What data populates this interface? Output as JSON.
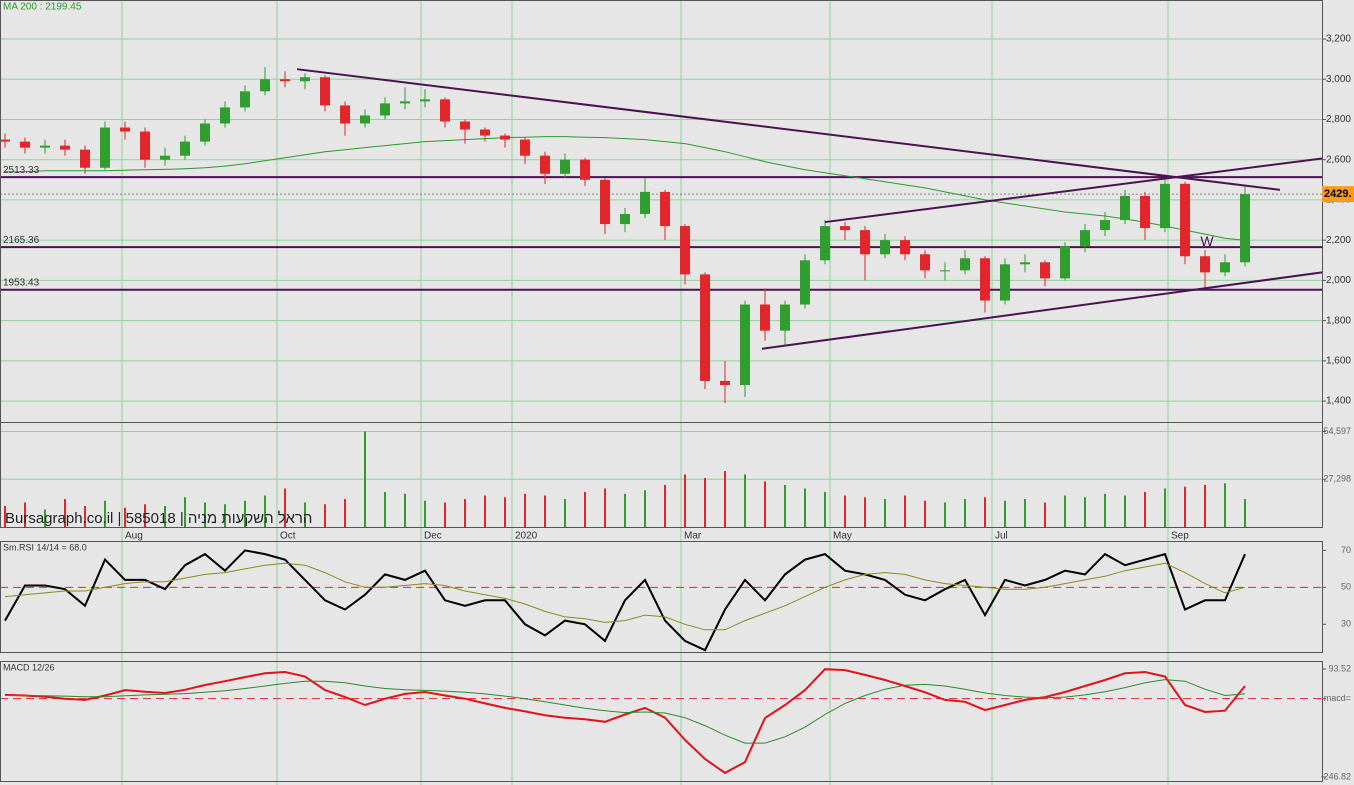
{
  "chart_data": [
    {
      "type": "candlestick",
      "ma_label": "MA 200 : 2199.45",
      "watermark": "Bursagraph.co.il | 585018 | הראל השקעות מניה",
      "open": [
        2700,
        2690,
        2660,
        2670,
        2650,
        2560,
        2760,
        2740,
        2600,
        2620,
        2690,
        2780,
        2860,
        2940,
        3000,
        2990,
        3010,
        2870,
        2780,
        2820,
        2880,
        2890,
        2900,
        2790,
        2750,
        2720,
        2700,
        2620,
        2530,
        2600,
        2500,
        2280,
        2330,
        2440,
        2270,
        2030,
        1500,
        1480,
        1880,
        1750,
        1880,
        2100,
        2270,
        2250,
        2130,
        2200,
        2130,
        2050,
        2050,
        2110,
        1900,
        2080,
        2090,
        2010,
        2170,
        2250,
        2300,
        2420,
        2260,
        2480,
        2120,
        2040,
        2090
      ],
      "high": [
        2730,
        2710,
        2700,
        2700,
        2670,
        2790,
        2790,
        2760,
        2660,
        2720,
        2800,
        2890,
        2970,
        3060,
        3040,
        3030,
        3020,
        2890,
        2850,
        2910,
        2960,
        2950,
        2910,
        2800,
        2760,
        2730,
        2710,
        2640,
        2630,
        2610,
        2510,
        2360,
        2510,
        2450,
        2280,
        2040,
        1600,
        1900,
        1960,
        1900,
        2130,
        2300,
        2290,
        2270,
        2230,
        2220,
        2150,
        2090,
        2150,
        2120,
        2110,
        2130,
        2100,
        2190,
        2280,
        2340,
        2450,
        2440,
        2510,
        2490,
        2150,
        2130,
        2470
      ],
      "low": [
        2660,
        2630,
        2630,
        2620,
        2530,
        2550,
        2700,
        2560,
        2570,
        2600,
        2670,
        2760,
        2840,
        2920,
        2960,
        2950,
        2840,
        2720,
        2760,
        2800,
        2850,
        2860,
        2760,
        2680,
        2690,
        2660,
        2580,
        2480,
        2510,
        2470,
        2230,
        2240,
        2310,
        2200,
        1980,
        1460,
        1390,
        1420,
        1700,
        1680,
        1860,
        2080,
        2200,
        2000,
        2110,
        2100,
        2010,
        2000,
        2030,
        1840,
        1880,
        2040,
        1970,
        2000,
        2140,
        2220,
        2280,
        2200,
        2240,
        2080,
        1960,
        2020,
        2070
      ],
      "close": [
        2690,
        2660,
        2670,
        2650,
        2560,
        2760,
        2740,
        2600,
        2620,
        2690,
        2780,
        2860,
        2940,
        3000,
        2990,
        3010,
        2870,
        2780,
        2820,
        2880,
        2890,
        2900,
        2790,
        2750,
        2720,
        2700,
        2620,
        2530,
        2600,
        2500,
        2280,
        2330,
        2440,
        2270,
        2030,
        1500,
        1480,
        1880,
        1750,
        1880,
        2100,
        2270,
        2250,
        2130,
        2200,
        2130,
        2050,
        2050,
        2110,
        1900,
        2080,
        2090,
        2010,
        2170,
        2250,
        2300,
        2420,
        2260,
        2480,
        2120,
        2040,
        2090,
        2429
      ],
      "up_color": "#2f9e2f",
      "down_color": "#e3262b",
      "ma": {
        "color": "#2c9a2c",
        "values": [
          2540,
          2540,
          2545,
          2545,
          2545,
          2545,
          2548,
          2550,
          2552,
          2555,
          2560,
          2568,
          2580,
          2595,
          2610,
          2625,
          2640,
          2650,
          2660,
          2670,
          2680,
          2690,
          2695,
          2700,
          2705,
          2710,
          2712,
          2715,
          2715,
          2712,
          2710,
          2705,
          2700,
          2690,
          2680,
          2660,
          2640,
          2615,
          2590,
          2570,
          2550,
          2535,
          2520,
          2505,
          2490,
          2475,
          2460,
          2440,
          2420,
          2400,
          2385,
          2370,
          2355,
          2340,
          2330,
          2320,
          2305,
          2290,
          2270,
          2250,
          2230,
          2210,
          2199.45
        ]
      },
      "levels": [
        2513.33,
        2165.36,
        1953.43
      ],
      "last_price": {
        "value": 2429,
        "label": "2429."
      },
      "trend_color": "#4a1250",
      "trend_lines": [
        [
          [
            14.6,
            3050
          ],
          [
            63.75,
            2450
          ]
        ],
        [
          [
            41,
            2290
          ],
          [
            65.85,
            2606
          ]
        ],
        [
          [
            37.85,
            1660
          ],
          [
            65.85,
            2040
          ]
        ]
      ],
      "annotations": [
        {
          "text": "W",
          "x": 60.1,
          "y": 2190
        }
      ],
      "xlim": [
        -0.25,
        65.85
      ],
      "xticks": [
        {
          "value": 5.85,
          "label": "Aug"
        },
        {
          "value": 13.6,
          "label": "Oct"
        },
        {
          "value": 20.8,
          "label": "Dec"
        },
        {
          "value": 25.35,
          "label": "2020"
        },
        {
          "value": 33.8,
          "label": "Mar"
        },
        {
          "value": 41.25,
          "label": "May"
        },
        {
          "value": 49.35,
          "label": "Jul"
        },
        {
          "value": 58.15,
          "label": "Sep"
        }
      ],
      "ylim": [
        1296,
        3394
      ],
      "yticks": [
        {
          "value": 1400,
          "label": "1,400"
        },
        {
          "value": 1600,
          "label": "1,600"
        },
        {
          "value": 1800,
          "label": "1,800"
        },
        {
          "value": 2000,
          "label": "2,000"
        },
        {
          "value": 2200,
          "label": "2,200"
        },
        {
          "value": 2400,
          "label": "2,400"
        },
        {
          "value": 2600,
          "label": "2,600"
        },
        {
          "value": 2800,
          "label": "2,800"
        },
        {
          "value": 3000,
          "label": "3,000"
        },
        {
          "value": 3200,
          "label": "3,200"
        }
      ],
      "grid": true,
      "grid_color": "#8fd49a"
    },
    {
      "type": "bar",
      "values": [
        12000,
        14000,
        10000,
        16000,
        12000,
        15000,
        11000,
        13000,
        12000,
        17000,
        14000,
        13000,
        15000,
        18000,
        22000,
        14000,
        13000,
        16000,
        54597,
        20000,
        19000,
        15000,
        14000,
        16000,
        18000,
        17000,
        19000,
        18000,
        16000,
        20000,
        22000,
        19000,
        21000,
        24000,
        30000,
        28000,
        32000,
        30000,
        26000,
        24000,
        22000,
        20000,
        18000,
        17000,
        16000,
        18000,
        15000,
        14000,
        16000,
        17000,
        15000,
        16000,
        14000,
        18000,
        17000,
        19000,
        18000,
        20000,
        22000,
        23000,
        24000,
        25000,
        16000
      ],
      "ylim": [
        0,
        60000
      ],
      "yticks": [
        {
          "value": 27298,
          "label": "27,298"
        },
        {
          "value": 54597,
          "label": "54,597"
        }
      ]
    },
    {
      "type": "line",
      "title": "Sm.RSI 14/14 = 68.0",
      "series": [
        {
          "color": "#000000",
          "values": [
            32,
            51,
            51,
            49,
            40,
            65,
            54,
            54,
            49,
            62,
            68,
            59,
            70,
            68,
            65,
            54,
            43,
            38,
            46,
            57,
            54,
            59,
            43,
            40,
            43,
            43,
            30,
            24,
            32,
            30,
            21,
            43,
            54,
            32,
            21,
            16,
            38,
            54,
            43,
            57,
            65,
            68,
            59,
            57,
            54,
            46,
            43,
            49,
            54,
            35,
            54,
            51,
            54,
            59,
            57,
            68,
            62,
            65,
            68,
            38,
            43,
            43,
            68
          ]
        },
        {
          "color": "#8a8a20",
          "values": [
            45,
            46,
            47,
            48,
            48,
            50,
            52,
            53,
            53,
            55,
            57,
            58,
            60,
            62,
            63,
            62,
            58,
            53,
            50,
            50,
            51,
            52,
            51,
            48,
            46,
            44,
            41,
            37,
            34,
            33,
            31,
            32,
            35,
            34,
            30,
            27,
            27,
            32,
            36,
            40,
            45,
            50,
            54,
            57,
            58,
            57,
            54,
            52,
            51,
            50,
            49,
            49,
            50,
            52,
            54,
            56,
            59,
            61,
            63,
            58,
            52,
            47,
            50
          ]
        }
      ],
      "reference": 50,
      "reference_color": "#e3262b",
      "ylim": [
        15,
        74
      ],
      "yticks": [
        30,
        50,
        70
      ]
    },
    {
      "type": "line",
      "title": "MACD 12/26",
      "series": [
        {
          "color": "#e3121a",
          "values": [
            12,
            10,
            6,
            0,
            -4,
            10,
            27,
            22,
            18,
            28,
            43,
            55,
            68,
            80,
            84,
            70,
            27,
            5,
            -20,
            0,
            15,
            21,
            10,
            0,
            -15,
            -29,
            -40,
            -52,
            -60,
            -65,
            -73,
            -50,
            -29,
            -60,
            -130,
            -190,
            -234,
            -200,
            -61,
            -20,
            27,
            93,
            90,
            75,
            59,
            40,
            20,
            -4,
            -10,
            -36,
            -20,
            -4,
            5,
            21,
            40,
            59,
            80,
            84,
            70,
            -20,
            -42,
            -38,
            40
          ]
        },
        {
          "color": "#2a8a2a",
          "values": [
            10,
            10,
            9,
            8,
            6,
            6,
            9,
            12,
            14,
            16,
            20,
            25,
            32,
            40,
            48,
            55,
            55,
            50,
            40,
            32,
            28,
            26,
            24,
            20,
            15,
            8,
            0,
            -10,
            -20,
            -30,
            -38,
            -44,
            -42,
            -45,
            -60,
            -85,
            -115,
            -140,
            -140,
            -120,
            -90,
            -50,
            -15,
            10,
            30,
            42,
            45,
            40,
            30,
            18,
            10,
            5,
            3,
            5,
            12,
            22,
            35,
            50,
            60,
            55,
            30,
            10,
            15
          ]
        }
      ],
      "reference": 0,
      "reference_color": "#e3262b",
      "ylim": [
        -246.82,
        93.52
      ],
      "yticks": [
        {
          "value": -246.82,
          "label": "-246.82"
        },
        {
          "value": 0,
          "label": "macd="
        },
        {
          "value": 93.52,
          "label": "93.52"
        }
      ]
    }
  ]
}
